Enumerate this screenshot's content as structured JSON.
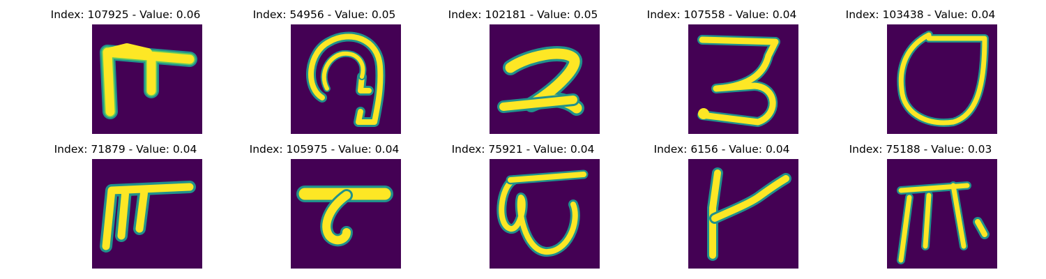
{
  "colors": {
    "background": "#440154",
    "stroke_core": "#fde725",
    "stroke_edge": "#21918c",
    "stroke_mid": "#5ec962"
  },
  "panels": [
    {
      "title": "Index: 107925 - Value: 0.06",
      "glyph": "glyph-pi-hook-icon"
    },
    {
      "title": "Index: 54956 - Value: 0.05",
      "glyph": "glyph-hook-loop-icon"
    },
    {
      "title": "Index: 102181 - Value: 0.05",
      "glyph": "glyph-two-icon"
    },
    {
      "title": "Index: 107558 - Value: 0.04",
      "glyph": "glyph-three-icon"
    },
    {
      "title": "Index: 103438 - Value: 0.04",
      "glyph": "glyph-shield-loop-icon"
    },
    {
      "title": "Index: 71879 - Value: 0.04",
      "glyph": "glyph-pi-icon"
    },
    {
      "title": "Index: 105975 - Value: 0.04",
      "glyph": "glyph-t-hook-icon"
    },
    {
      "title": "Index: 75921 - Value: 0.04",
      "glyph": "glyph-omega-icon"
    },
    {
      "title": "Index: 6156 - Value: 0.04",
      "glyph": "glyph-k-stroke-icon"
    },
    {
      "title": "Index: 75188 - Value: 0.03",
      "glyph": "glyph-pi-double-icon"
    }
  ]
}
